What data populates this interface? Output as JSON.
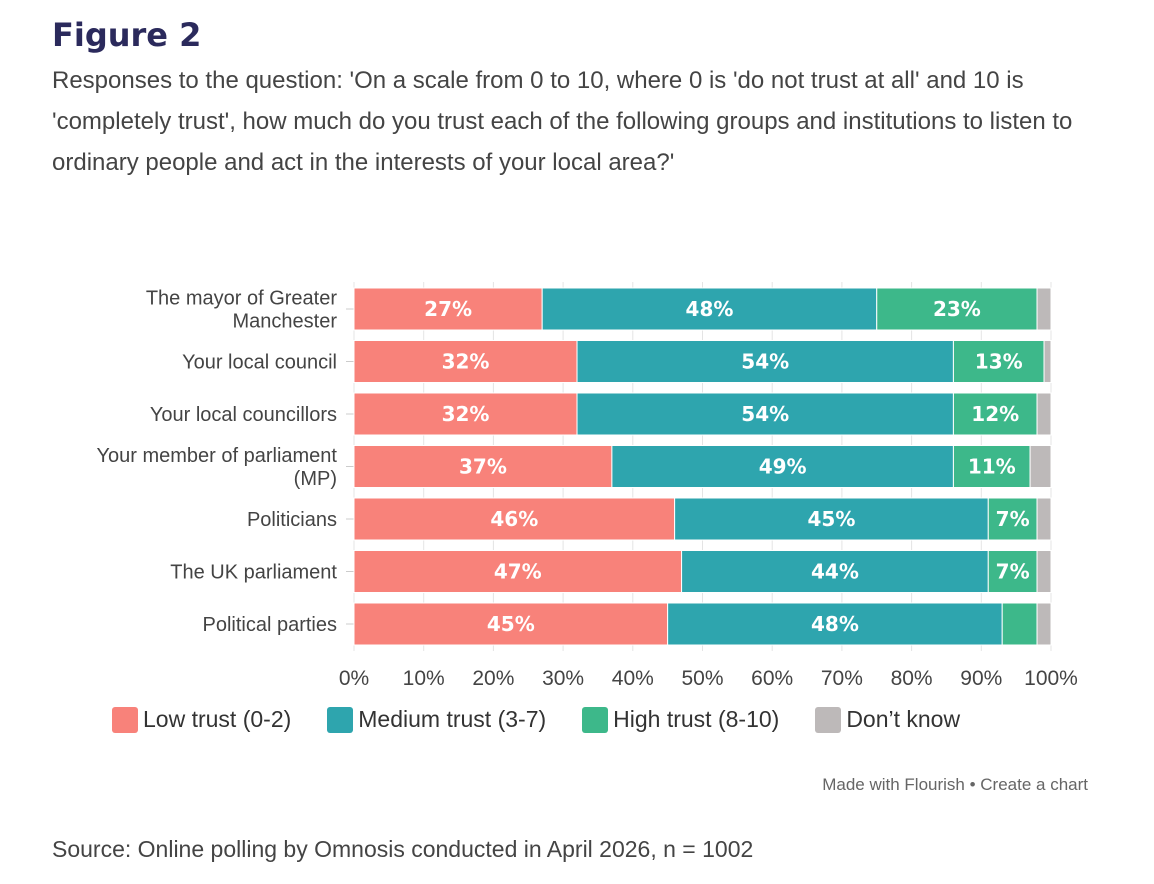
{
  "figure_label": "Figure 2",
  "subtitle": "Responses to the question: 'On a scale from 0 to 10, where 0 is 'do not trust at all' and 10 is 'completely trust', how much do you trust each of the following groups and institutions to listen to ordinary people and act in the interests of your local area?'",
  "credit": "Made with Flourish • Create a chart",
  "source": "Source: Online polling by Omnosis conducted in April 2026, n = 1002",
  "colors": {
    "low": "#f8827a",
    "medium": "#2ea5ae",
    "high": "#3db88a",
    "dont_know": "#bdb9b9"
  },
  "chart_data": {
    "type": "bar",
    "orientation": "horizontal",
    "stacked": true,
    "categories": [
      [
        "The mayor of Greater",
        "Manchester"
      ],
      [
        "Your local council"
      ],
      [
        "Your local councillors"
      ],
      [
        "Your member of parliament",
        "(MP)"
      ],
      [
        "Politicians"
      ],
      [
        "The UK parliament"
      ],
      [
        "Political parties"
      ]
    ],
    "series": [
      {
        "name": "Low trust (0-2)",
        "color_key": "low",
        "values": [
          27,
          32,
          32,
          37,
          46,
          47,
          45
        ],
        "labels": [
          "27%",
          "32%",
          "32%",
          "37%",
          "46%",
          "47%",
          "45%"
        ]
      },
      {
        "name": "Medium trust (3-7)",
        "color_key": "medium",
        "values": [
          48,
          54,
          54,
          49,
          45,
          44,
          48
        ],
        "labels": [
          "48%",
          "54%",
          "54%",
          "49%",
          "45%",
          "44%",
          "48%"
        ]
      },
      {
        "name": "High trust (8-10)",
        "color_key": "high",
        "values": [
          23,
          13,
          12,
          11,
          7,
          7,
          5
        ],
        "labels": [
          "23%",
          "13%",
          "12%",
          "11%",
          "7%",
          "7%",
          ""
        ]
      },
      {
        "name": "Don’t know",
        "color_key": "dont_know",
        "values": [
          2,
          1,
          2,
          3,
          2,
          2,
          2
        ],
        "labels": [
          "",
          "",
          "",
          "",
          "",
          "",
          ""
        ]
      }
    ],
    "xlim": [
      0,
      100
    ],
    "xticks": [
      "0%",
      "10%",
      "20%",
      "30%",
      "40%",
      "50%",
      "60%",
      "70%",
      "80%",
      "90%",
      "100%"
    ],
    "grid": true,
    "legend": "bottom"
  }
}
